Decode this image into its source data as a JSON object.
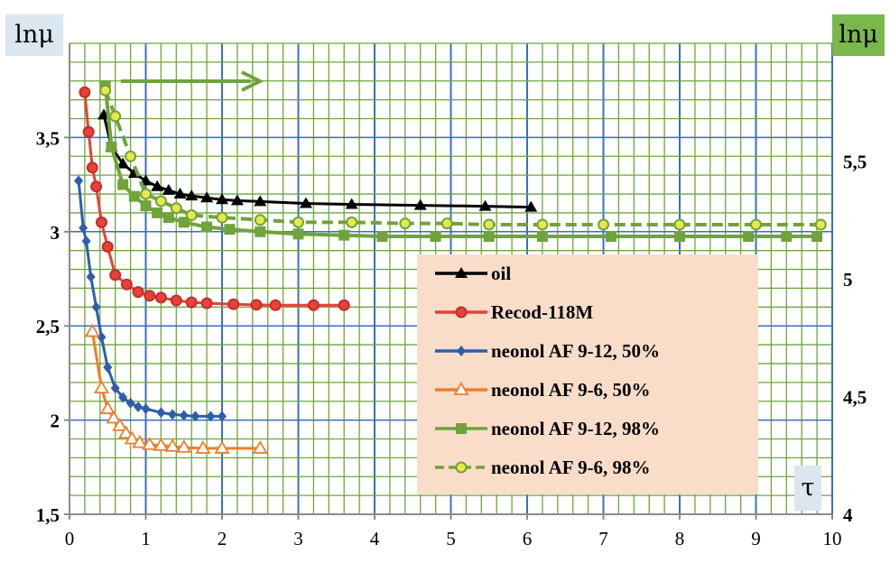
{
  "chart_data": {
    "type": "line",
    "ylabel": "lnμ",
    "y2label": "lnμ",
    "xlabel": "τ",
    "xlim": [
      0,
      10
    ],
    "ylim": [
      1.5,
      4
    ],
    "y2lim": [
      4,
      6
    ],
    "x_ticks": [
      "0",
      "1",
      "2",
      "3",
      "4",
      "5",
      "6",
      "7",
      "8",
      "9",
      "10"
    ],
    "y_ticks": [
      "1,5",
      "2",
      "2,5",
      "3",
      "3,5"
    ],
    "y_tick_values": [
      1.5,
      2,
      2.5,
      3,
      3.5
    ],
    "y2_ticks": [
      "4",
      "4,5",
      "5",
      "5,5"
    ],
    "y2_tick_values": [
      4,
      4.5,
      5,
      5.5
    ],
    "grid": true,
    "legend_position": "bottom-right",
    "annotation": "arrow pointing right (series on right axis)",
    "series": [
      {
        "name": "oil",
        "axis": "left",
        "color": "#000000",
        "marker": "triangle",
        "dash": false,
        "x": [
          0.45,
          0.55,
          0.7,
          0.85,
          1.0,
          1.15,
          1.3,
          1.45,
          1.6,
          1.8,
          2.0,
          2.2,
          2.5,
          3.1,
          3.7,
          4.6,
          5.45,
          6.05
        ],
        "y": [
          3.62,
          3.45,
          3.36,
          3.31,
          3.27,
          3.24,
          3.22,
          3.2,
          3.19,
          3.18,
          3.17,
          3.165,
          3.16,
          3.15,
          3.145,
          3.14,
          3.135,
          3.13
        ]
      },
      {
        "name": "Recod-118M",
        "axis": "left",
        "color": "#e8403a",
        "stroke": "#c0302a",
        "marker": "circle",
        "dash": false,
        "x": [
          0.2,
          0.25,
          0.3,
          0.35,
          0.42,
          0.5,
          0.6,
          0.75,
          0.9,
          1.05,
          1.2,
          1.4,
          1.6,
          1.8,
          2.15,
          2.45,
          2.7,
          3.2,
          3.6
        ],
        "y": [
          3.74,
          3.53,
          3.34,
          3.24,
          3.05,
          2.92,
          2.77,
          2.72,
          2.68,
          2.66,
          2.65,
          2.635,
          2.625,
          2.62,
          2.615,
          2.612,
          2.61,
          2.61,
          2.61
        ]
      },
      {
        "name": "neonol AF 9-12, 50%",
        "axis": "left",
        "color": "#2e5eaa",
        "marker": "diamond",
        "dash": false,
        "x": [
          0.12,
          0.18,
          0.22,
          0.28,
          0.35,
          0.42,
          0.5,
          0.6,
          0.7,
          0.8,
          0.9,
          1.0,
          1.2,
          1.35,
          1.5,
          1.65,
          1.85,
          2.0
        ],
        "y": [
          3.27,
          3.02,
          2.95,
          2.76,
          2.6,
          2.44,
          2.28,
          2.17,
          2.12,
          2.09,
          2.07,
          2.06,
          2.04,
          2.03,
          2.025,
          2.02,
          2.02,
          2.02
        ]
      },
      {
        "name": "neonol AF 9-6, 50%",
        "axis": "left",
        "color": "#f07d2a",
        "marker": "triangle-open",
        "dash": false,
        "x": [
          0.3,
          0.42,
          0.5,
          0.58,
          0.66,
          0.74,
          0.82,
          0.92,
          1.05,
          1.2,
          1.35,
          1.5,
          1.75,
          2.0,
          2.5
        ],
        "y": [
          2.47,
          2.17,
          2.06,
          2.01,
          1.97,
          1.93,
          1.9,
          1.88,
          1.87,
          1.865,
          1.86,
          1.855,
          1.85,
          1.85,
          1.85
        ]
      },
      {
        "name": "neonol AF 9-12, 98%",
        "axis": "right",
        "color": "#70a33c",
        "marker": "square",
        "dash": false,
        "x": [
          0.47,
          0.55,
          0.7,
          0.85,
          1.0,
          1.15,
          1.3,
          1.5,
          1.8,
          2.1,
          2.5,
          3.0,
          3.6,
          4.1,
          4.8,
          5.5,
          6.2,
          7.1,
          8.0,
          8.9,
          9.4,
          9.8
        ],
        "y": [
          5.82,
          5.56,
          5.4,
          5.35,
          5.31,
          5.28,
          5.26,
          5.24,
          5.22,
          5.21,
          5.2,
          5.19,
          5.185,
          5.18,
          5.18,
          5.18,
          5.18,
          5.18,
          5.18,
          5.18,
          5.18,
          5.18
        ]
      },
      {
        "name": "neonol AF 9-6, 98%",
        "axis": "right",
        "color": "#70a33c",
        "fill": "#e8e84a",
        "marker": "circle",
        "dash": true,
        "x": [
          0.47,
          0.6,
          0.8,
          1.0,
          1.2,
          1.4,
          1.6,
          2.0,
          2.5,
          3.0,
          3.7,
          4.4,
          4.95,
          5.5,
          6.2,
          7.0,
          8.0,
          9.0,
          9.85
        ],
        "y": [
          5.8,
          5.69,
          5.52,
          5.36,
          5.33,
          5.3,
          5.27,
          5.26,
          5.25,
          5.24,
          5.24,
          5.235,
          5.235,
          5.23,
          5.23,
          5.23,
          5.23,
          5.23,
          5.23
        ]
      }
    ]
  }
}
